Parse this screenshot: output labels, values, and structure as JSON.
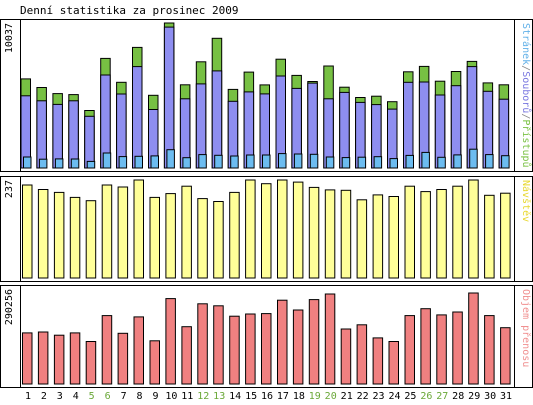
{
  "chart_data": {
    "type": "bar",
    "title": "Denní statistika za prosinec 2009",
    "x": [
      "1",
      "2",
      "3",
      "4",
      "5",
      "6",
      "7",
      "8",
      "9",
      "10",
      "11",
      "12",
      "13",
      "14",
      "15",
      "16",
      "17",
      "18",
      "19",
      "20",
      "21",
      "22",
      "23",
      "24",
      "25",
      "26",
      "27",
      "28",
      "29",
      "30",
      "31"
    ],
    "weekend_days": [
      5,
      6,
      12,
      13,
      19,
      20,
      26,
      27
    ],
    "panels": [
      {
        "name": "hits",
        "max_label": "10037",
        "ymax": 10037,
        "right_label_parts": [
          {
            "text": "Stránek",
            "color": "#60b0e8"
          },
          {
            "text": "/",
            "color": "#888888"
          },
          {
            "text": "Souborů",
            "color": "#7a78e0"
          },
          {
            "text": "/",
            "color": "#888888"
          },
          {
            "text": "Přístupů",
            "color": "#7ac143"
          }
        ],
        "series": [
          {
            "name": "Přístupů",
            "color": "#77c043",
            "values": [
              6170,
              5570,
              5150,
              5080,
              3980,
              7590,
              5930,
              8350,
              5030,
              10037,
              5760,
              7350,
              8980,
              5440,
              6640,
              5750,
              7530,
              6410,
              5990,
              7060,
              5590,
              4880,
              4970,
              4590,
              6660,
              7030,
              6010,
              6680,
              7380,
              5890,
              5760
            ]
          },
          {
            "name": "Souborů",
            "color": "#8e8ef0",
            "values": [
              5000,
              4650,
              4400,
              4650,
              3580,
              6440,
              5120,
              7020,
              4050,
              9750,
              4790,
              5820,
              6720,
              4620,
              5270,
              5130,
              6370,
              5510,
              5880,
              4790,
              5230,
              4540,
              4390,
              4080,
              5930,
              5950,
              5050,
              5700,
              7020,
              5310,
              4760
            ]
          },
          {
            "name": "Stránek",
            "color": "#6cbcf0",
            "values": [
              760,
              610,
              630,
              620,
              460,
              1040,
              790,
              810,
              840,
              1270,
              710,
              930,
              880,
              830,
              900,
              900,
              1000,
              970,
              950,
              760,
              720,
              750,
              780,
              650,
              870,
              1080,
              740,
              910,
              1300,
              930,
              850
            ]
          }
        ]
      },
      {
        "name": "visits",
        "max_label": "237",
        "ymax": 237,
        "right_label_parts": [
          {
            "text": "Návštěv",
            "color": "#e8d830"
          }
        ],
        "series": [
          {
            "name": "Návštěv",
            "color": "#ffff99",
            "values": [
              225,
              214,
              207,
              195,
              187,
              225,
              220,
              237,
              195,
              204,
              222,
              192,
              185,
              207,
              237,
              228,
              237,
              232,
              219,
              213,
              212,
              189,
              201,
              197,
              222,
              209,
              214,
              222,
              237,
              200,
              205
            ]
          }
        ]
      },
      {
        "name": "kb",
        "max_label": "290256",
        "ymax": 290256,
        "right_label_parts": [
          {
            "text": "Objem přenosu",
            "color": "#f09090"
          }
        ],
        "series": [
          {
            "name": "Objem přenosu",
            "color": "#f08080",
            "values": [
              156000,
              159000,
              149000,
              156000,
              130000,
              209000,
              155000,
              205000,
              132000,
              261000,
              175000,
              245000,
              239000,
              207000,
              214000,
              215000,
              256000,
              226000,
              258000,
              275000,
              168000,
              181000,
              141000,
              130000,
              209000,
              230000,
              211000,
              220000,
              278000,
              209000,
              172000
            ]
          }
        ]
      }
    ]
  }
}
